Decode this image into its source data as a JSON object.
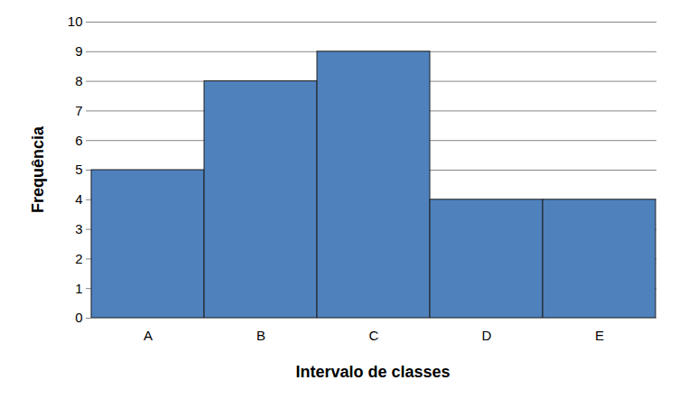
{
  "chart_data": {
    "type": "bar",
    "xlabel": "Intervalo de classes",
    "ylabel": "Frequência",
    "categories": [
      "A",
      "B",
      "C",
      "D",
      "E"
    ],
    "values": [
      5,
      8,
      9,
      4,
      4
    ],
    "color": "#4f81bd",
    "ylim": [
      0,
      10
    ],
    "yticks": [
      0,
      1,
      2,
      3,
      4,
      5,
      6,
      7,
      8,
      9,
      10
    ],
    "grid": true
  }
}
